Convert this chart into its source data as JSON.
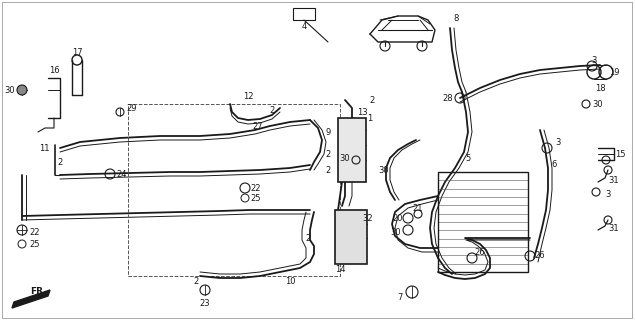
{
  "bg_color": "#ffffff",
  "line_color": "#1a1a1a",
  "figsize": [
    6.35,
    3.2
  ],
  "dpi": 100,
  "border_color": "#cccccc"
}
